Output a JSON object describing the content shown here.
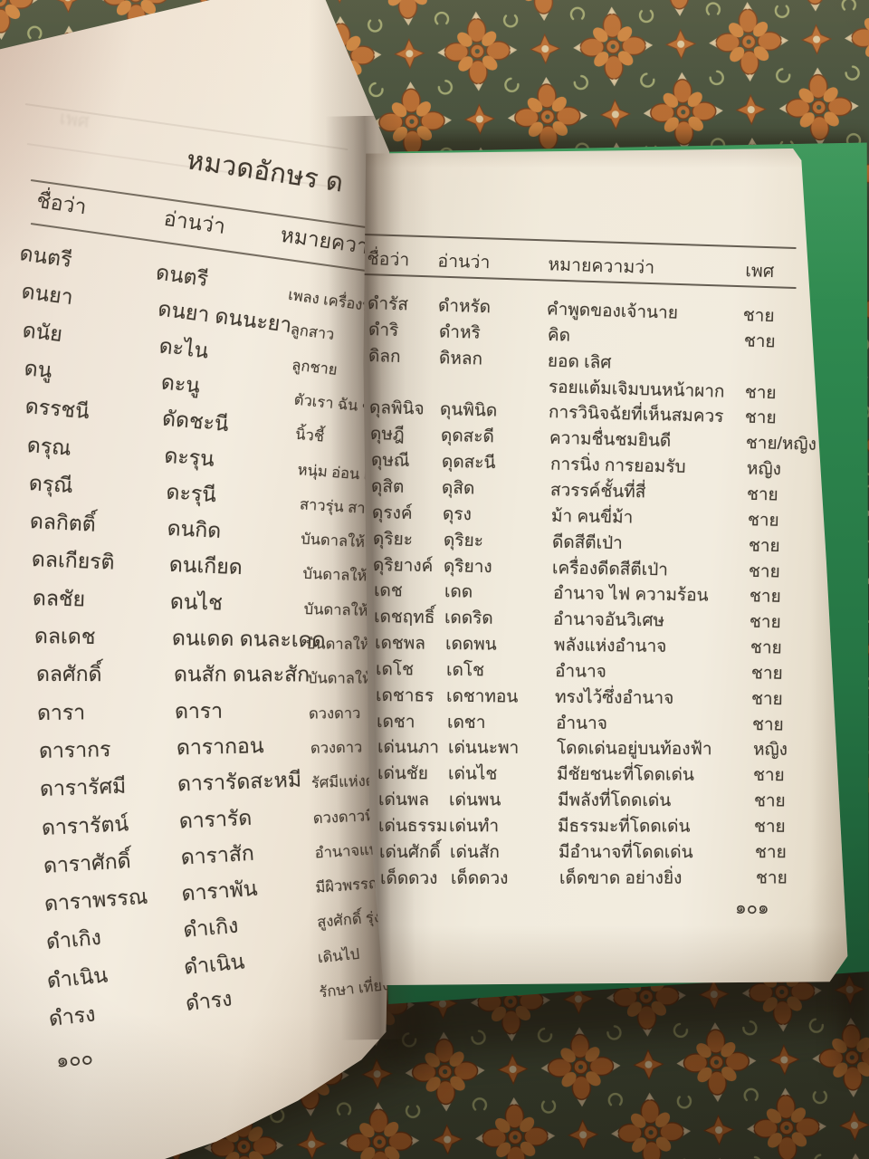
{
  "book": {
    "left_page": {
      "title": "หมวดอักษร ด",
      "headers": {
        "name": "ชื่อว่า",
        "pron": "อ่านว่า",
        "meaning": "หมายความว่า"
      },
      "rows": [
        {
          "name": "ดนตรี",
          "pron": "ดนตรี",
          "meaning": "เพลง เครื่องบรรเลง"
        },
        {
          "name": "ดนยา",
          "pron": "ดนยา ดนนะยา",
          "meaning": "ลูกสาว"
        },
        {
          "name": "ดนัย",
          "pron": "ดะไน",
          "meaning": "ลูกชาย"
        },
        {
          "name": "ดนู",
          "pron": "ดะนู",
          "meaning": "ตัวเรา ฉัน ข้าพเจ้า"
        },
        {
          "name": "ดรรชนี",
          "pron": "ดัดชะนี",
          "meaning": "นิ้วชี้"
        },
        {
          "name": "ดรุณ",
          "pron": "ดะรุน",
          "meaning": "หนุ่ม อ่อน เด็กหนุ่ม"
        },
        {
          "name": "ดรุณี",
          "pron": "ดะรุนี",
          "meaning": "สาวรุ่น สาวอ่อน รุ่น"
        },
        {
          "name": "ดลกิตติ์",
          "pron": "ดนกิด",
          "meaning": "บันดาลให้มีชื่อเสียง"
        },
        {
          "name": "ดลเกียรติ",
          "pron": "ดนเกียด",
          "meaning": "บันดาลให้มีชื่อเสียง"
        },
        {
          "name": "ดลชัย",
          "pron": "ดนไช",
          "meaning": "บันดาลให้บังเกิดชัยชนะ"
        },
        {
          "name": "ดลเดช",
          "pron": "ดนเดด ดนละเดด",
          "meaning": "บันดาลให้บังเกิดอำนาจ"
        },
        {
          "name": "ดลศักดิ์",
          "pron": "ดนสัก ดนละสัก",
          "meaning": "บันดาลให้บังเกิดอำนาจ"
        },
        {
          "name": "ดารา",
          "pron": "ดารา",
          "meaning": "ดวงดาว"
        },
        {
          "name": "ดารากร",
          "pron": "ดารากอน",
          "meaning": "ดวงดาว"
        },
        {
          "name": "ดารารัศมี",
          "pron": "ดารารัดสะหมี",
          "meaning": "รัศมีแห่งดวงดาว"
        },
        {
          "name": "ดารารัตน์",
          "pron": "ดารารัด",
          "meaning": "ดวงดาวที่วิเศษ"
        },
        {
          "name": "ดาราศักดิ์",
          "pron": "ดาราสัก",
          "meaning": "อำนาจแห่งดวงดาว"
        },
        {
          "name": "ดาราพรรณ",
          "pron": "ดาราพัน",
          "meaning": "มีผิวพรรณดั่งดวงดาว"
        },
        {
          "name": "ดำเกิง",
          "pron": "ดำเกิง",
          "meaning": "สูงศักดิ์ รุ่งเรือง"
        },
        {
          "name": "ดำเนิน",
          "pron": "ดำเนิน",
          "meaning": "เดินไป"
        },
        {
          "name": "ดำรง",
          "pron": "ดำรง",
          "meaning": "รักษา เที่ยงตรง ทรงไว้"
        }
      ],
      "page_number": "๑๐๐",
      "ghost_text": "เพศ"
    },
    "right_page": {
      "headers": {
        "name": "ชื่อว่า",
        "pron": "อ่านว่า",
        "meaning": "หมายความว่า",
        "gender": "เพศ"
      },
      "rows": [
        {
          "name": "ดำรัส",
          "pron": "ดำหรัด",
          "meaning": "คำพูดของเจ้านาย",
          "gender": "ชาย"
        },
        {
          "name": "ดำริ",
          "pron": "ดำหริ",
          "meaning": "คิด",
          "gender": "ชาย"
        },
        {
          "name": "ดิลก",
          "pron": "ดิหลก",
          "meaning": "ยอด เลิศ",
          "gender": ""
        },
        {
          "name": "",
          "pron": "",
          "meaning": "รอยแต้มเจิมบนหน้าผาก",
          "gender": "ชาย"
        },
        {
          "name": "ดุลพินิจ",
          "pron": "ดุนพินิด",
          "meaning": "การวินิจฉัยที่เห็นสมควร",
          "gender": "ชาย"
        },
        {
          "name": "ดุษฎี",
          "pron": "ดุดสะดี",
          "meaning": "ความชื่นชมยินดี",
          "gender": "ชาย/หญิง"
        },
        {
          "name": "ดุษณี",
          "pron": "ดุดสะนี",
          "meaning": "การนิ่ง การยอมรับ",
          "gender": "หญิง"
        },
        {
          "name": "ดุสิต",
          "pron": "ดุสิด",
          "meaning": "สวรรค์ชั้นที่สี่",
          "gender": "ชาย"
        },
        {
          "name": "ดุรงค์",
          "pron": "ดุรง",
          "meaning": "ม้า คนขี่ม้า",
          "gender": "ชาย"
        },
        {
          "name": "ดุริยะ",
          "pron": "ดุริยะ",
          "meaning": "ดีดสีตีเป่า",
          "gender": "ชาย"
        },
        {
          "name": "ดุริยางค์",
          "pron": "ดุริยาง",
          "meaning": "เครื่องดีดสีตีเป่า",
          "gender": "ชาย"
        },
        {
          "name": "เดช",
          "pron": "เดด",
          "meaning": "อำนาจ ไฟ ความร้อน",
          "gender": "ชาย"
        },
        {
          "name": "เดชฤทธิ์",
          "pron": "เดดริด",
          "meaning": "อำนาจอันวิเศษ",
          "gender": "ชาย"
        },
        {
          "name": "เดชพล",
          "pron": "เดดพน",
          "meaning": "พลังแห่งอำนาจ",
          "gender": "ชาย"
        },
        {
          "name": "เดโช",
          "pron": "เดโช",
          "meaning": "อำนาจ",
          "gender": "ชาย"
        },
        {
          "name": "เดชาธร",
          "pron": "เดชาทอน",
          "meaning": "ทรงไว้ซึ่งอำนาจ",
          "gender": "ชาย"
        },
        {
          "name": "เดชา",
          "pron": "เดชา",
          "meaning": "อำนาจ",
          "gender": "ชาย"
        },
        {
          "name": "เด่นนภา",
          "pron": "เด่นนะพา",
          "meaning": "โดดเด่นอยู่บนท้องฟ้า",
          "gender": "หญิง"
        },
        {
          "name": "เด่นชัย",
          "pron": "เด่นไช",
          "meaning": "มีชัยชนะที่โดดเด่น",
          "gender": "ชาย"
        },
        {
          "name": "เด่นพล",
          "pron": "เด่นพน",
          "meaning": "มีพลังที่โดดเด่น",
          "gender": "ชาย"
        },
        {
          "name": "เด่นธรรม",
          "pron": "เด่นทำ",
          "meaning": "มีธรรมะที่โดดเด่น",
          "gender": "ชาย"
        },
        {
          "name": "เด่นศักดิ์",
          "pron": "เด่นสัก",
          "meaning": "มีอำนาจที่โดดเด่น",
          "gender": "ชาย"
        },
        {
          "name": "เด็ดดวง",
          "pron": "เด็ดดวง",
          "meaning": "เด็ดขาด อย่างยิ่ง",
          "gender": "ชาย"
        }
      ],
      "page_number": "๑๐๑"
    }
  },
  "colors": {
    "ink": "#3f3a32",
    "fabric_green": "#3e4c3a",
    "motif_orange": "#b5682e",
    "motif_orange_light": "#c9803c",
    "motif_outline": "#6e3817",
    "motif_cream": "#dac8a2",
    "motif_tan": "#9aa571",
    "cover_green": "#2f8a50",
    "page_cream": "#f1ebdd"
  }
}
